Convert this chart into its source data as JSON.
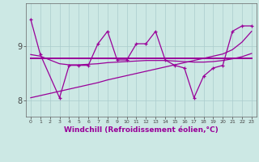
{
  "xlabel": "Windchill (Refroidissement éolien,°C)",
  "background_color": "#cce8e4",
  "grid_color": "#aacccc",
  "line_color": "#990099",
  "x_hours": [
    0,
    1,
    2,
    3,
    4,
    5,
    6,
    7,
    8,
    9,
    10,
    11,
    12,
    13,
    14,
    15,
    16,
    17,
    18,
    19,
    20,
    21,
    22,
    23
  ],
  "series_main": [
    9.5,
    8.85,
    null,
    8.05,
    8.65,
    8.65,
    8.65,
    9.05,
    9.28,
    8.75,
    8.75,
    9.05,
    9.05,
    9.28,
    8.75,
    8.65,
    8.6,
    8.05,
    8.45,
    8.6,
    8.65,
    9.28,
    9.38,
    9.38
  ],
  "series_avg": [
    8.78,
    8.78,
    8.78,
    8.78,
    8.78,
    8.78,
    8.78,
    8.78,
    8.78,
    8.78,
    8.78,
    8.78,
    8.78,
    8.78,
    8.78,
    8.78,
    8.78,
    8.78,
    8.78,
    8.78,
    8.78,
    8.78,
    8.78,
    8.78
  ],
  "series_linear": [
    8.05,
    8.09,
    8.13,
    8.17,
    8.21,
    8.25,
    8.29,
    8.33,
    8.38,
    8.42,
    8.46,
    8.5,
    8.54,
    8.58,
    8.62,
    8.66,
    8.7,
    8.74,
    8.78,
    8.82,
    8.86,
    8.94,
    9.08,
    9.28
  ],
  "series_smooth": [
    8.85,
    8.82,
    8.75,
    8.68,
    8.66,
    8.66,
    8.67,
    8.68,
    8.7,
    8.71,
    8.72,
    8.73,
    8.74,
    8.74,
    8.74,
    8.73,
    8.72,
    8.71,
    8.71,
    8.72,
    8.74,
    8.77,
    8.81,
    8.87
  ],
  "ylim": [
    7.7,
    9.8
  ],
  "yticks": [
    8,
    9
  ],
  "xlim": [
    -0.5,
    23.5
  ],
  "figsize": [
    3.2,
    2.0
  ],
  "dpi": 100
}
